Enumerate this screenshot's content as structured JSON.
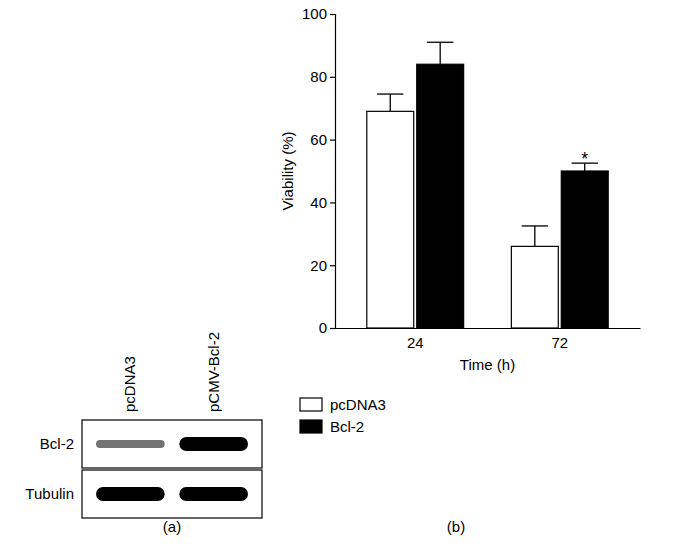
{
  "chart_data": {
    "type": "bar",
    "x_label": "Time (h)",
    "y_label": "Viability (%)",
    "categories": [
      "24",
      "72"
    ],
    "series": [
      {
        "name": "pcDNA3",
        "color": "#ffffff",
        "values": [
          69,
          26
        ],
        "errors": [
          5.5,
          6.5
        ]
      },
      {
        "name": "Bcl-2",
        "color": "#000000",
        "values": [
          84,
          50
        ],
        "errors": [
          7,
          2.5
        ],
        "significance": [
          null,
          "*"
        ]
      }
    ],
    "ylim": [
      0,
      100
    ],
    "yticks": [
      0,
      20,
      40,
      60,
      80,
      100
    ],
    "grid": false,
    "legend": "bottom",
    "annotations": [
      "(b)"
    ]
  },
  "blot": {
    "panel_label": "(a)",
    "lanes": [
      "pcDNA3",
      "pCMV-Bcl-2"
    ],
    "rows": [
      {
        "name": "Bcl-2",
        "intensity": [
          0.4,
          1
        ]
      },
      {
        "name": "Tubulin",
        "intensity": [
          1,
          1
        ]
      }
    ]
  }
}
